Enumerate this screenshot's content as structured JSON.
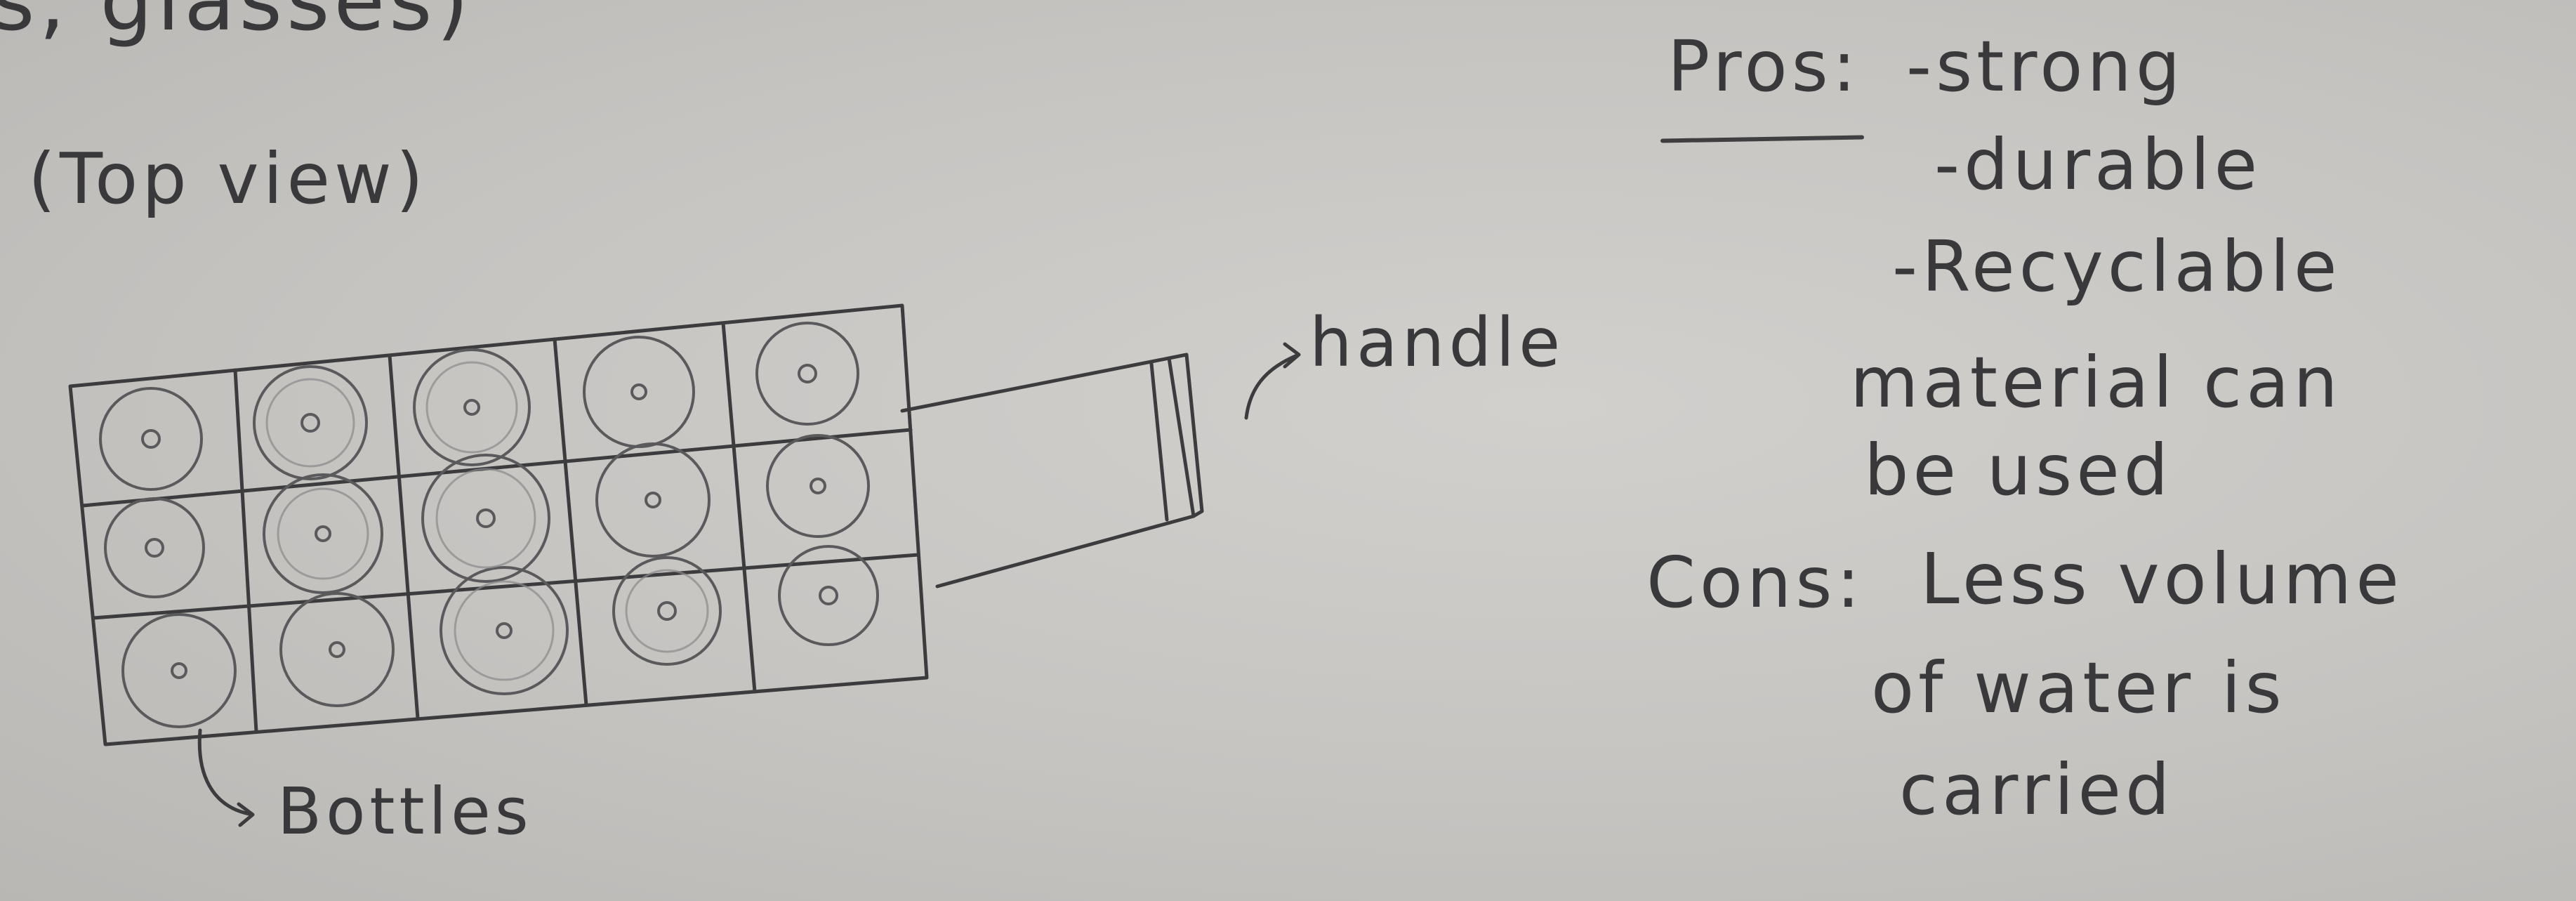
{
  "note": {
    "cut_heading": "s, glasses)",
    "view_label": "(Top view)",
    "handle_label": "handle",
    "bottles_label": "Bottles",
    "pros": {
      "heading": "Pros:",
      "items": [
        "-strong",
        "-durable",
        "-Recyclable",
        "material can",
        "be used"
      ]
    },
    "cons": {
      "heading": "Cons:",
      "lines": [
        "Less volume",
        "of water is",
        "carried"
      ]
    }
  },
  "crate": {
    "rows": 3,
    "columns": 5
  },
  "colors": {
    "paper": "#c6c4c1",
    "pencil": "#3a3a3c"
  }
}
